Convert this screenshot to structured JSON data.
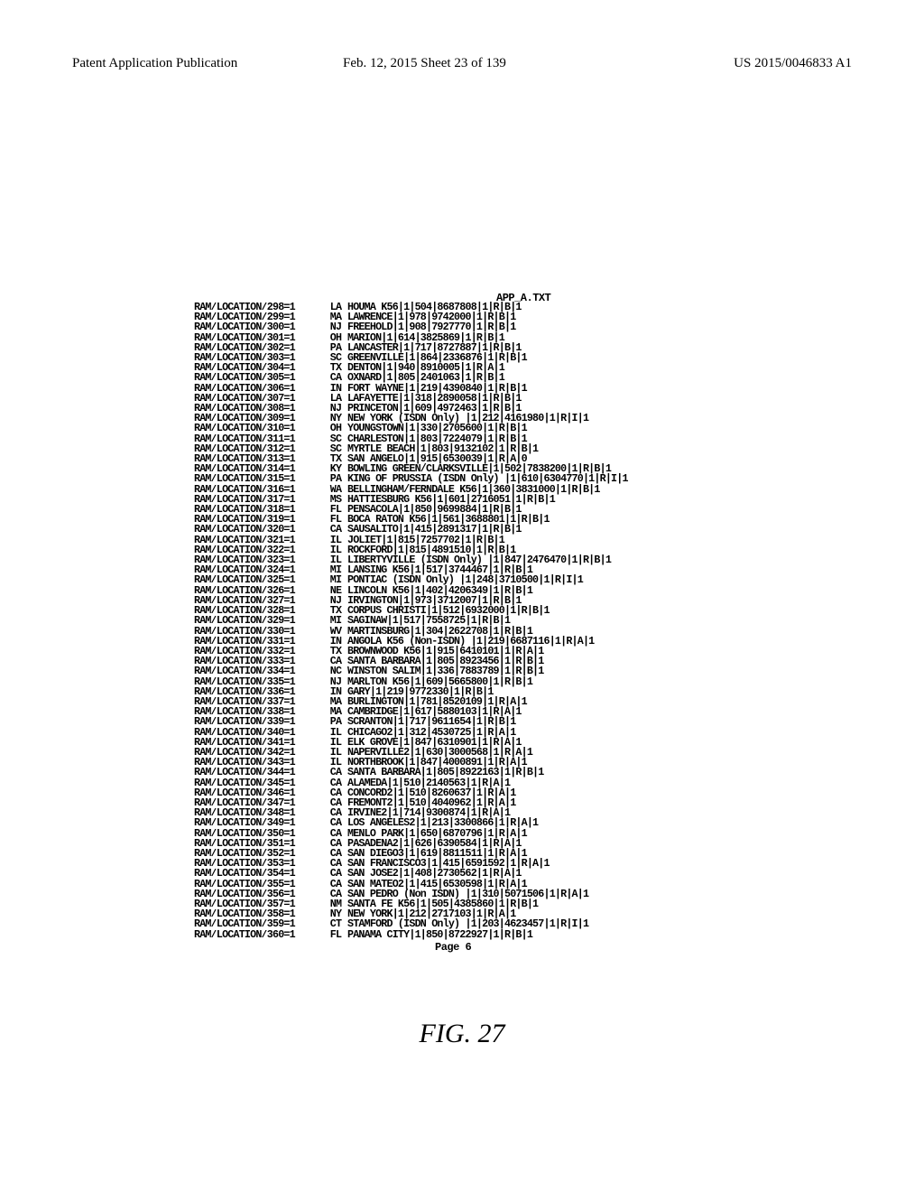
{
  "header": {
    "left": "Patent Application Publication",
    "center": "Feb. 12, 2015  Sheet 23 of 139",
    "right": "US 2015/0046833 A1"
  },
  "file_title": "APP_A.TXT",
  "page_footer": "Page 6",
  "figure_caption": "FIG. 27",
  "font": {
    "listing_family": "Courier New",
    "listing_size_pt": 8.5,
    "listing_weight": "bold"
  },
  "colors": {
    "bg": "#ffffff",
    "fg": "#000000"
  },
  "rows": [
    {
      "key": "RAM/LOCATION/298=1",
      "st": "LA",
      "rest": "HOUMA K56|1|504|8687808|1|R|B|1"
    },
    {
      "key": "RAM/LOCATION/299=1",
      "st": "MA",
      "rest": "LAWRENCE|1|978|9742000|1|R|B|1"
    },
    {
      "key": "RAM/LOCATION/300=1",
      "st": "NJ",
      "rest": "FREEHOLD|1|908|7927770|1|R|B|1"
    },
    {
      "key": "RAM/LOCATION/301=1",
      "st": "OH",
      "rest": "MARION|1|614|3825869|1|R|B|1"
    },
    {
      "key": "RAM/LOCATION/302=1",
      "st": "PA",
      "rest": "LANCASTER|1|717|8727887|1|R|B|1"
    },
    {
      "key": "RAM/LOCATION/303=1",
      "st": "SC",
      "rest": "GREENVILLE|1|864|2336876|1|R|B|1"
    },
    {
      "key": "RAM/LOCATION/304=1",
      "st": "TX",
      "rest": "DENTON|1|940|8910005|1|R|A|1"
    },
    {
      "key": "RAM/LOCATION/305=1",
      "st": "CA",
      "rest": "OXNARD|1|805|2401063|1|R|B|1"
    },
    {
      "key": "RAM/LOCATION/306=1",
      "st": "IN",
      "rest": "FORT WAYNE|1|219|4390840|1|R|B|1"
    },
    {
      "key": "RAM/LOCATION/307=1",
      "st": "LA",
      "rest": "LAFAYETTE|1|318|2890058|1|R|B|1"
    },
    {
      "key": "RAM/LOCATION/308=1",
      "st": "NJ",
      "rest": "PRINCETON|1|609|4972463|1|R|B|1"
    },
    {
      "key": "RAM/LOCATION/309=1",
      "st": "NY",
      "rest": "NEW YORK (ISDN Only) |1|212|4161980|1|R|I|1"
    },
    {
      "key": "RAM/LOCATION/310=1",
      "st": "OH",
      "rest": "YOUNGSTOWN|1|330|2705600|1|R|B|1"
    },
    {
      "key": "RAM/LOCATION/311=1",
      "st": "SC",
      "rest": "CHARLESTON|1|803|7224079|1|R|B|1"
    },
    {
      "key": "RAM/LOCATION/312=1",
      "st": "SC",
      "rest": "MYRTLE BEACH|1|803|9132102|1|R|B|1"
    },
    {
      "key": "RAM/LOCATION/313=1",
      "st": "TX",
      "rest": "SAN ANGELO|1|915|6530039|1|R|A|0"
    },
    {
      "key": "RAM/LOCATION/314=1",
      "st": "KY",
      "rest": "BOWLING GREEN/CLARKSVILLE|1|502|7838200|1|R|B|1"
    },
    {
      "key": "RAM/LOCATION/315=1",
      "st": "PA",
      "rest": "KING OF PRUSSIA (ISDN Only) |1|610|6304770|1|R|I|1"
    },
    {
      "key": "RAM/LOCATION/316=1",
      "st": "WA",
      "rest": "BELLINGHAM/FERNDALE K56|1|360|3831000|1|R|B|1"
    },
    {
      "key": "RAM/LOCATION/317=1",
      "st": "MS",
      "rest": "HATTIESBURG K56|1|601|2716051|1|R|B|1"
    },
    {
      "key": "RAM/LOCATION/318=1",
      "st": "FL",
      "rest": "PENSACOLA|1|850|9699884|1|R|B|1"
    },
    {
      "key": "RAM/LOCATION/319=1",
      "st": "FL",
      "rest": "BOCA RATON K56|1|561|3688801|1|R|B|1"
    },
    {
      "key": "RAM/LOCATION/320=1",
      "st": "CA",
      "rest": "SAUSALITO|1|415|2891317|1|R|B|1"
    },
    {
      "key": "RAM/LOCATION/321=1",
      "st": "IL",
      "rest": "JOLIET|1|815|7257702|1|R|B|1"
    },
    {
      "key": "RAM/LOCATION/322=1",
      "st": "IL",
      "rest": "ROCKFORD|1|815|4891510|1|R|B|1"
    },
    {
      "key": "RAM/LOCATION/323=1",
      "st": "IL",
      "rest": "LIBERTYVILLE (ISDN Only) |1|847|2476470|1|R|B|1"
    },
    {
      "key": "RAM/LOCATION/324=1",
      "st": "MI",
      "rest": "LANSING K56|1|517|3744467|1|R|B|1"
    },
    {
      "key": "RAM/LOCATION/325=1",
      "st": "MI",
      "rest": "PONTIAC (ISDN Only) |1|248|3710500|1|R|I|1"
    },
    {
      "key": "RAM/LOCATION/326=1",
      "st": "NE",
      "rest": "LINCOLN K56|1|402|4206349|1|R|B|1"
    },
    {
      "key": "RAM/LOCATION/327=1",
      "st": "NJ",
      "rest": "IRVINGTON|1|973|3712007|1|R|B|1"
    },
    {
      "key": "RAM/LOCATION/328=1",
      "st": "TX",
      "rest": "CORPUS CHRISTI|1|512|6932000|1|R|B|1"
    },
    {
      "key": "RAM/LOCATION/329=1",
      "st": "MI",
      "rest": "SAGINAW|1|517|7558725|1|R|B|1"
    },
    {
      "key": "RAM/LOCATION/330=1",
      "st": "WV",
      "rest": "MARTINSBURG|1|304|2622708|1|R|B|1"
    },
    {
      "key": "RAM/LOCATION/331=1",
      "st": "IN",
      "rest": "ANGOLA K56 (Non-ISDN) |1|219|6687116|1|R|A|1"
    },
    {
      "key": "RAM/LOCATION/332=1",
      "st": "TX",
      "rest": "BROWNWOOD K56|1|915|6410101|1|R|A|1"
    },
    {
      "key": "RAM/LOCATION/333=1",
      "st": "CA",
      "rest": "SANTA BARBARA|1|805|8923456|1|R|B|1"
    },
    {
      "key": "RAM/LOCATION/334=1",
      "st": "NC",
      "rest": "WINSTON SALIM|1|336|7883789|1|R|B|1"
    },
    {
      "key": "RAM/LOCATION/335=1",
      "st": "NJ",
      "rest": "MARLTON K56|1|609|5665800|1|R|B|1"
    },
    {
      "key": "RAM/LOCATION/336=1",
      "st": "IN",
      "rest": "GARY|1|219|9772330|1|R|B|1"
    },
    {
      "key": "RAM/LOCATION/337=1",
      "st": "MA",
      "rest": "BURLINGTON|1|781|8520109|1|R|A|1"
    },
    {
      "key": "RAM/LOCATION/338=1",
      "st": "MA",
      "rest": "CAMBRIDGE|1|617|5880103|1|R|A|1"
    },
    {
      "key": "RAM/LOCATION/339=1",
      "st": "PA",
      "rest": "SCRANTON|1|717|9611654|1|R|B|1"
    },
    {
      "key": "RAM/LOCATION/340=1",
      "st": "IL",
      "rest": "CHICAGO2|1|312|4530725|1|R|A|1"
    },
    {
      "key": "RAM/LOCATION/341=1",
      "st": "IL",
      "rest": "ELK GROVE|1|847|6310901|1|R|A|1"
    },
    {
      "key": "RAM/LOCATION/342=1",
      "st": "IL",
      "rest": "NAPERVILLE2|1|630|3000568|1|R|A|1"
    },
    {
      "key": "RAM/LOCATION/343=1",
      "st": "IL",
      "rest": "NORTHBROOK|1|847|4000891|1|R|A|1"
    },
    {
      "key": "RAM/LOCATION/344=1",
      "st": "CA",
      "rest": "SANTA BARBARA|1|805|8922163|1|R|B|1"
    },
    {
      "key": "RAM/LOCATION/345=1",
      "st": "CA",
      "rest": "ALAMEDA|1|510|2140563|1|R|A|1"
    },
    {
      "key": "RAM/LOCATION/346=1",
      "st": "CA",
      "rest": "CONCORD2|1|510|8260637|1|R|A|1"
    },
    {
      "key": "RAM/LOCATION/347=1",
      "st": "CA",
      "rest": "FREMONT2|1|510|4040962|1|R|A|1"
    },
    {
      "key": "RAM/LOCATION/348=1",
      "st": "CA",
      "rest": "IRVINE2|1|714|9300874|1|R|A|1"
    },
    {
      "key": "RAM/LOCATION/349=1",
      "st": "CA",
      "rest": "LOS ANGELES2|1|213|3300866|1|R|A|1"
    },
    {
      "key": "RAM/LOCATION/350=1",
      "st": "CA",
      "rest": "MENLO PARK|1|650|6870796|1|R|A|1"
    },
    {
      "key": "RAM/LOCATION/351=1",
      "st": "CA",
      "rest": "PASADENA2|1|626|6390584|1|R|A|1"
    },
    {
      "key": "RAM/LOCATION/352=1",
      "st": "CA",
      "rest": "SAN DIEGO3|1|619|8811511|1|R|A|1"
    },
    {
      "key": "RAM/LOCATION/353=1",
      "st": "CA",
      "rest": "SAN FRANCISCO3|1|415|6591592|1|R|A|1"
    },
    {
      "key": "RAM/LOCATION/354=1",
      "st": "CA",
      "rest": "SAN JOSE2|1|408|2730562|1|R|A|1"
    },
    {
      "key": "RAM/LOCATION/355=1",
      "st": "CA",
      "rest": "SAN MATEO2|1|415|6530598|1|R|A|1"
    },
    {
      "key": "RAM/LOCATION/356=1",
      "st": "CA",
      "rest": "SAN PEDRO (Non ISDN) |1|310|5071506|1|R|A|1"
    },
    {
      "key": "RAM/LOCATION/357=1",
      "st": "NM",
      "rest": "SANTA FE K56|1|505|4385860|1|R|B|1"
    },
    {
      "key": "RAM/LOCATION/358=1",
      "st": "NY",
      "rest": "NEW YORK|1|212|2717103|1|R|A|1"
    },
    {
      "key": "RAM/LOCATION/359=1",
      "st": "CT",
      "rest": "STAMFORD (ISDN Only) |1|203|4623457|1|R|I|1"
    },
    {
      "key": "RAM/LOCATION/360=1",
      "st": "FL",
      "rest": "PANAMA CITY|1|850|8722927|1|R|B|1"
    }
  ]
}
